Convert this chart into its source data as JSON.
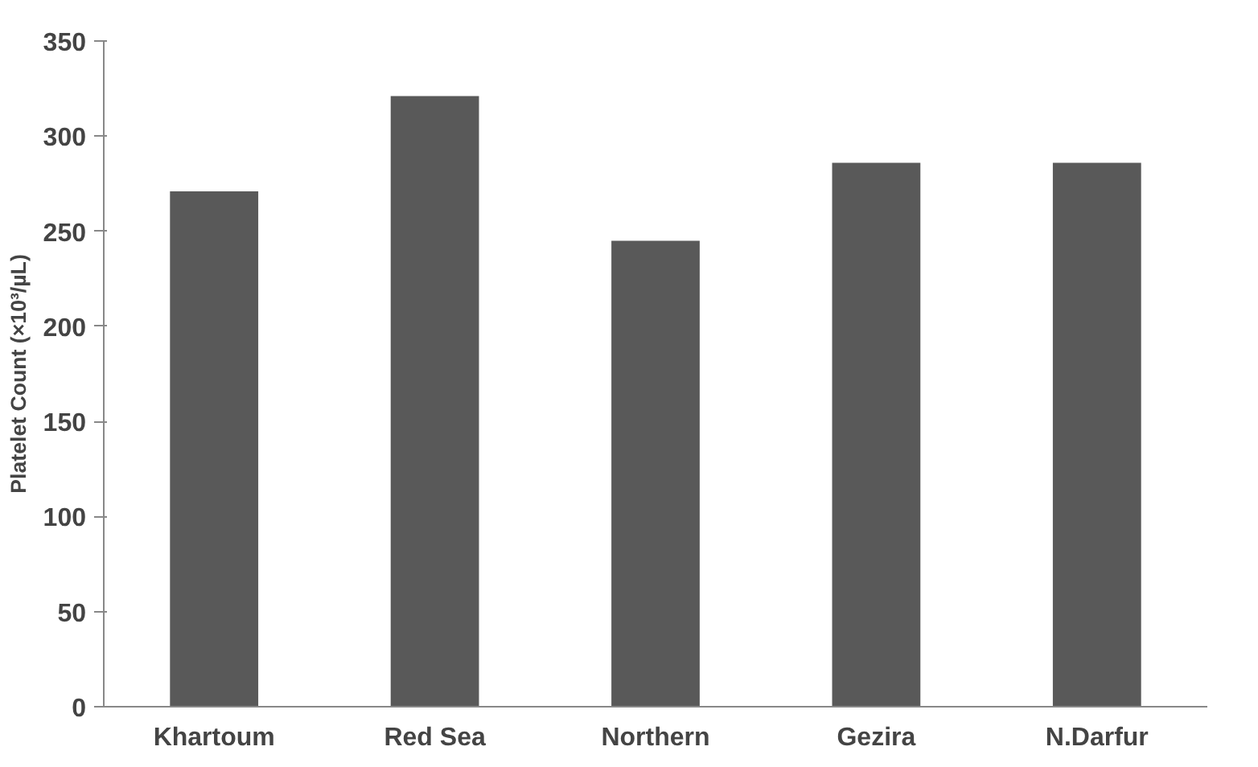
{
  "chart_data": {
    "type": "bar",
    "ylabel": "Platelet Count (×10³/µL)",
    "categories": [
      "Khartoum",
      "Red Sea",
      "Northern",
      "Gezira",
      "N.Darfur"
    ],
    "values": [
      271,
      321,
      245,
      286,
      286
    ],
    "color": "#595959",
    "ylim": [
      0,
      350
    ],
    "yticks": [
      0,
      50,
      100,
      150,
      200,
      250,
      300,
      350
    ],
    "grid": false
  }
}
